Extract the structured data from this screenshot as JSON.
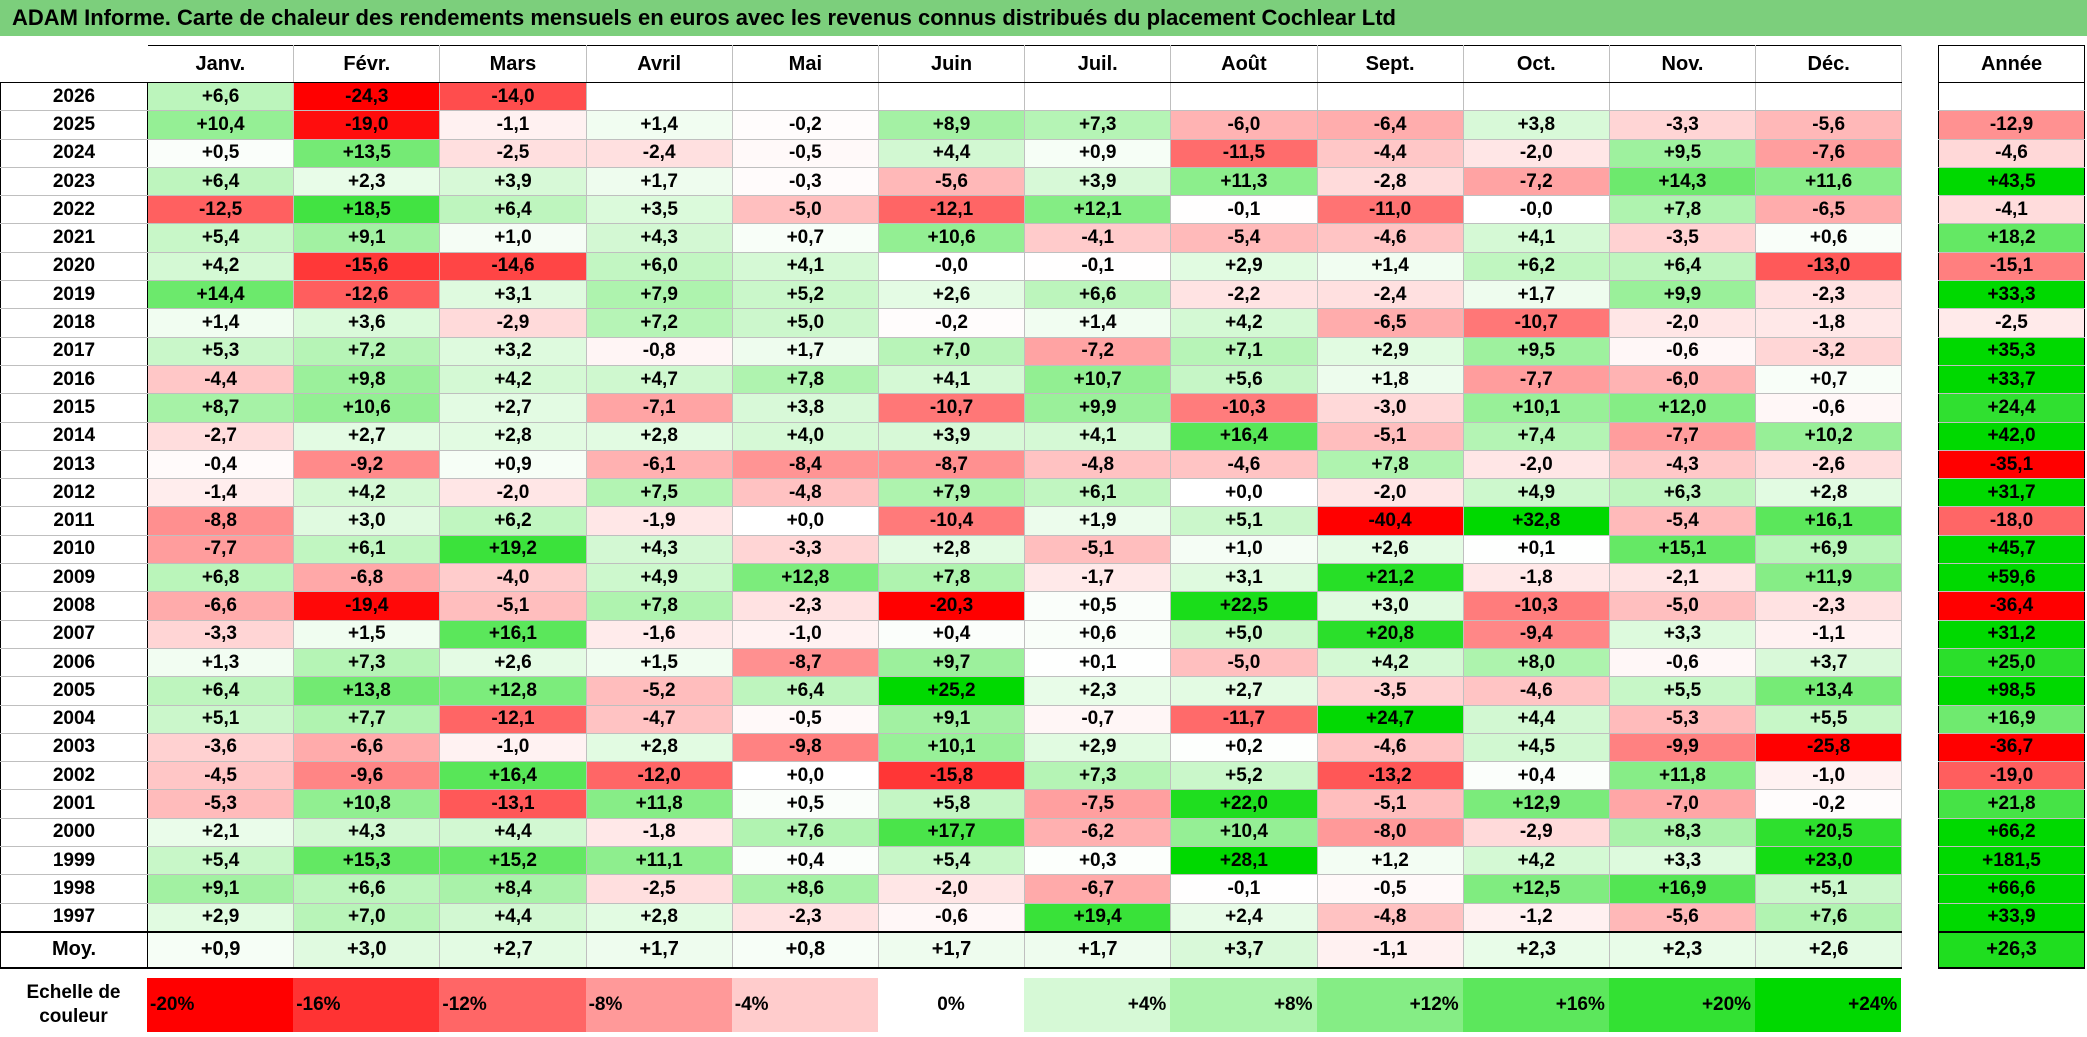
{
  "title": "ADAM Informe. Carte de chaleur des rendements mensuels en euros avec les revenus connus distribués du placement Cochlear Ltd",
  "chart_data": {
    "type": "heatmap",
    "months": [
      "Janv.",
      "Févr.",
      "Mars",
      "Avril",
      "Mai",
      "Juin",
      "Juil.",
      "Août",
      "Sept.",
      "Oct.",
      "Nov.",
      "Déc."
    ],
    "year_header": "Année",
    "avg_label": "Moy.",
    "rows": [
      {
        "year": "2026",
        "values": [
          "+6,6",
          "-24,3",
          "-14,0",
          "",
          "",
          "",
          "",
          "",
          "",
          "",
          "",
          ""
        ],
        "annual": ""
      },
      {
        "year": "2025",
        "values": [
          "+10,4",
          "-19,0",
          "-1,1",
          "+1,4",
          "-0,2",
          "+8,9",
          "+7,3",
          "-6,0",
          "-6,4",
          "+3,8",
          "-3,3",
          "-5,6"
        ],
        "annual": "-12,9"
      },
      {
        "year": "2024",
        "values": [
          "+0,5",
          "+13,5",
          "-2,5",
          "-2,4",
          "-0,5",
          "+4,4",
          "+0,9",
          "-11,5",
          "-4,4",
          "-2,0",
          "+9,5",
          "-7,6"
        ],
        "annual": "-4,6"
      },
      {
        "year": "2023",
        "values": [
          "+6,4",
          "+2,3",
          "+3,9",
          "+1,7",
          "-0,3",
          "-5,6",
          "+3,9",
          "+11,3",
          "-2,8",
          "-7,2",
          "+14,3",
          "+11,6"
        ],
        "annual": "+43,5"
      },
      {
        "year": "2022",
        "values": [
          "-12,5",
          "+18,5",
          "+6,4",
          "+3,5",
          "-5,0",
          "-12,1",
          "+12,1",
          "-0,1",
          "-11,0",
          "-0,0",
          "+7,8",
          "-6,5"
        ],
        "annual": "-4,1"
      },
      {
        "year": "2021",
        "values": [
          "+5,4",
          "+9,1",
          "+1,0",
          "+4,3",
          "+0,7",
          "+10,6",
          "-4,1",
          "-5,4",
          "-4,6",
          "+4,1",
          "-3,5",
          "+0,6"
        ],
        "annual": "+18,2"
      },
      {
        "year": "2020",
        "values": [
          "+4,2",
          "-15,6",
          "-14,6",
          "+6,0",
          "+4,1",
          "-0,0",
          "-0,1",
          "+2,9",
          "+1,4",
          "+6,2",
          "+6,4",
          "-13,0"
        ],
        "annual": "-15,1"
      },
      {
        "year": "2019",
        "values": [
          "+14,4",
          "-12,6",
          "+3,1",
          "+7,9",
          "+5,2",
          "+2,6",
          "+6,6",
          "-2,2",
          "-2,4",
          "+1,7",
          "+9,9",
          "-2,3"
        ],
        "annual": "+33,3"
      },
      {
        "year": "2018",
        "values": [
          "+1,4",
          "+3,6",
          "-2,9",
          "+7,2",
          "+5,0",
          "-0,2",
          "+1,4",
          "+4,2",
          "-6,5",
          "-10,7",
          "-2,0",
          "-1,8"
        ],
        "annual": "-2,5"
      },
      {
        "year": "2017",
        "values": [
          "+5,3",
          "+7,2",
          "+3,2",
          "-0,8",
          "+1,7",
          "+7,0",
          "-7,2",
          "+7,1",
          "+2,9",
          "+9,5",
          "-0,6",
          "-3,2"
        ],
        "annual": "+35,3"
      },
      {
        "year": "2016",
        "values": [
          "-4,4",
          "+9,8",
          "+4,2",
          "+4,7",
          "+7,8",
          "+4,1",
          "+10,7",
          "+5,6",
          "+1,8",
          "-7,7",
          "-6,0",
          "+0,7"
        ],
        "annual": "+33,7"
      },
      {
        "year": "2015",
        "values": [
          "+8,7",
          "+10,6",
          "+2,7",
          "-7,1",
          "+3,8",
          "-10,7",
          "+9,9",
          "-10,3",
          "-3,0",
          "+10,1",
          "+12,0",
          "-0,6"
        ],
        "annual": "+24,4"
      },
      {
        "year": "2014",
        "values": [
          "-2,7",
          "+2,7",
          "+2,8",
          "+2,8",
          "+4,0",
          "+3,9",
          "+4,1",
          "+16,4",
          "-5,1",
          "+7,4",
          "-7,7",
          "+10,2"
        ],
        "annual": "+42,0"
      },
      {
        "year": "2013",
        "values": [
          "-0,4",
          "-9,2",
          "+0,9",
          "-6,1",
          "-8,4",
          "-8,7",
          "-4,8",
          "-4,6",
          "+7,8",
          "-2,0",
          "-4,3",
          "-2,6"
        ],
        "annual": "-35,1"
      },
      {
        "year": "2012",
        "values": [
          "-1,4",
          "+4,2",
          "-2,0",
          "+7,5",
          "-4,8",
          "+7,9",
          "+6,1",
          "+0,0",
          "-2,0",
          "+4,9",
          "+6,3",
          "+2,8"
        ],
        "annual": "+31,7"
      },
      {
        "year": "2011",
        "values": [
          "-8,8",
          "+3,0",
          "+6,2",
          "-1,9",
          "+0,0",
          "-10,4",
          "+1,9",
          "+5,1",
          "-40,4",
          "+32,8",
          "-5,4",
          "+16,1"
        ],
        "annual": "-18,0"
      },
      {
        "year": "2010",
        "values": [
          "-7,7",
          "+6,1",
          "+19,2",
          "+4,3",
          "-3,3",
          "+2,8",
          "-5,1",
          "+1,0",
          "+2,6",
          "+0,1",
          "+15,1",
          "+6,9"
        ],
        "annual": "+45,7"
      },
      {
        "year": "2009",
        "values": [
          "+6,8",
          "-6,8",
          "-4,0",
          "+4,9",
          "+12,8",
          "+7,8",
          "-1,7",
          "+3,1",
          "+21,2",
          "-1,8",
          "-2,1",
          "+11,9"
        ],
        "annual": "+59,6"
      },
      {
        "year": "2008",
        "values": [
          "-6,6",
          "-19,4",
          "-5,1",
          "+7,8",
          "-2,3",
          "-20,3",
          "+0,5",
          "+22,5",
          "+3,0",
          "-10,3",
          "-5,0",
          "-2,3"
        ],
        "annual": "-36,4"
      },
      {
        "year": "2007",
        "values": [
          "-3,3",
          "+1,5",
          "+16,1",
          "-1,6",
          "-1,0",
          "+0,4",
          "+0,6",
          "+5,0",
          "+20,8",
          "-9,4",
          "+3,3",
          "-1,1"
        ],
        "annual": "+31,2"
      },
      {
        "year": "2006",
        "values": [
          "+1,3",
          "+7,3",
          "+2,6",
          "+1,5",
          "-8,7",
          "+9,7",
          "+0,1",
          "-5,0",
          "+4,2",
          "+8,0",
          "-0,6",
          "+3,7"
        ],
        "annual": "+25,0"
      },
      {
        "year": "2005",
        "values": [
          "+6,4",
          "+13,8",
          "+12,8",
          "-5,2",
          "+6,4",
          "+25,2",
          "+2,3",
          "+2,7",
          "-3,5",
          "-4,6",
          "+5,5",
          "+13,4"
        ],
        "annual": "+98,5"
      },
      {
        "year": "2004",
        "values": [
          "+5,1",
          "+7,7",
          "-12,1",
          "-4,7",
          "-0,5",
          "+9,1",
          "-0,7",
          "-11,7",
          "+24,7",
          "+4,4",
          "-5,3",
          "+5,5"
        ],
        "annual": "+16,9"
      },
      {
        "year": "2003",
        "values": [
          "-3,6",
          "-6,6",
          "-1,0",
          "+2,8",
          "-9,8",
          "+10,1",
          "+2,9",
          "+0,2",
          "-4,6",
          "+4,5",
          "-9,9",
          "-25,8"
        ],
        "annual": "-36,7"
      },
      {
        "year": "2002",
        "values": [
          "-4,5",
          "-9,6",
          "+16,4",
          "-12,0",
          "+0,0",
          "-15,8",
          "+7,3",
          "+5,2",
          "-13,2",
          "+0,4",
          "+11,8",
          "-1,0"
        ],
        "annual": "-19,0"
      },
      {
        "year": "2001",
        "values": [
          "-5,3",
          "+10,8",
          "-13,1",
          "+11,8",
          "+0,5",
          "+5,8",
          "-7,5",
          "+22,0",
          "-5,1",
          "+12,9",
          "-7,0",
          "-0,2"
        ],
        "annual": "+21,8"
      },
      {
        "year": "2000",
        "values": [
          "+2,1",
          "+4,3",
          "+4,4",
          "-1,8",
          "+7,6",
          "+17,7",
          "-6,2",
          "+10,4",
          "-8,0",
          "-2,9",
          "+8,3",
          "+20,5"
        ],
        "annual": "+66,2"
      },
      {
        "year": "1999",
        "values": [
          "+5,4",
          "+15,3",
          "+15,2",
          "+11,1",
          "+0,4",
          "+5,4",
          "+0,3",
          "+28,1",
          "+1,2",
          "+4,2",
          "+3,3",
          "+23,0"
        ],
        "annual": "+181,5"
      },
      {
        "year": "1998",
        "values": [
          "+9,1",
          "+6,6",
          "+8,4",
          "-2,5",
          "+8,6",
          "-2,0",
          "-6,7",
          "-0,1",
          "-0,5",
          "+12,5",
          "+16,9",
          "+5,1"
        ],
        "annual": "+66,6"
      },
      {
        "year": "1997",
        "values": [
          "+2,9",
          "+7,0",
          "+4,4",
          "+2,8",
          "-2,3",
          "-0,6",
          "+19,4",
          "+2,4",
          "-4,8",
          "-1,2",
          "-5,6",
          "+7,6"
        ],
        "annual": "+33,9"
      }
    ],
    "averages": {
      "values": [
        "+0,9",
        "+3,0",
        "+2,7",
        "+1,7",
        "+0,8",
        "+1,7",
        "+1,7",
        "+3,7",
        "-1,1",
        "+2,3",
        "+2,3",
        "+2,6"
      ],
      "annual": "+26,3"
    },
    "scale_label": "Echelle de couleur",
    "scale": [
      "-20%",
      "-16%",
      "-12%",
      "-8%",
      "-4%",
      "0%",
      "+4%",
      "+8%",
      "+12%",
      "+16%",
      "+20%",
      "+24%"
    ]
  }
}
